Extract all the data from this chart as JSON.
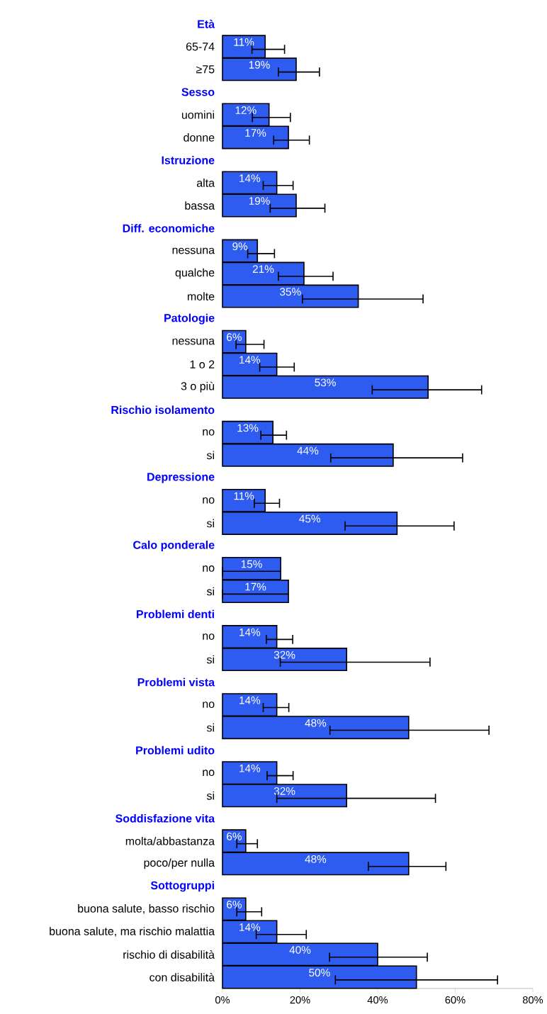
{
  "chart_data": {
    "type": "bar",
    "orientation": "horizontal",
    "color": "#2f5cf0",
    "categories": [
      "Età",
      "65-74",
      "≥75",
      "Sesso",
      "uomini",
      "donne",
      "Istruzione",
      "alta",
      "bassa",
      "Diff. economiche",
      "nessuna",
      "qualche",
      "molte",
      "Patologie",
      "nessuna",
      "1 o 2",
      "3 o più",
      "Rischio isolamento",
      "no",
      "si",
      "Depressione",
      "no",
      "si",
      "Calo ponderale",
      "no",
      "si",
      "Problemi denti",
      "no",
      "si",
      "Problemi vista",
      "no",
      "si",
      "Problemi udito",
      "no",
      "si",
      "Soddisfazione vita",
      "molta/abbastanza",
      "poco/per nulla",
      "Sottogruppi",
      "buona salute, basso rischio",
      "buona salute, ma rischio malattia",
      "rischio di disabilità",
      "con disabilità"
    ],
    "values": [
      null,
      11,
      19,
      null,
      12,
      17,
      null,
      14,
      19,
      null,
      9,
      21,
      35,
      null,
      6,
      14,
      53,
      null,
      13,
      44,
      null,
      11,
      45,
      null,
      15,
      17,
      null,
      14,
      32,
      null,
      14,
      48,
      null,
      14,
      32,
      null,
      6,
      48,
      null,
      6,
      14,
      40,
      50
    ],
    "errors": [
      null,
      [
        7.6,
        16.0
      ],
      [
        14.4,
        25.0
      ],
      null,
      [
        7.7,
        17.5
      ],
      [
        13.2,
        22.4
      ],
      null,
      [
        10.5,
        18.2
      ],
      [
        12.3,
        26.4
      ],
      null,
      [
        6.5,
        13.4
      ],
      [
        14.4,
        28.5
      ],
      [
        20.6,
        51.7
      ],
      null,
      [
        3.5,
        10.7
      ],
      [
        9.6,
        18.5
      ],
      [
        38.6,
        66.8
      ],
      null,
      [
        9.9,
        16.5
      ],
      [
        27.9,
        61.9
      ],
      null,
      [
        8.2,
        14.7
      ],
      [
        31.6,
        59.7
      ],
      null,
      [
        0,
        15
      ],
      [
        0,
        17
      ],
      null,
      [
        11.3,
        18.1
      ],
      [
        14.9,
        53.5
      ],
      null,
      [
        10.5,
        17.1
      ],
      [
        27.7,
        68.7
      ],
      null,
      [
        11.5,
        18.2
      ],
      [
        14.0,
        54.9
      ],
      null,
      [
        3.7,
        9.0
      ],
      [
        37.6,
        57.6
      ],
      null,
      [
        3.7,
        10.1
      ],
      [
        8.7,
        21.6
      ],
      [
        27.6,
        52.8
      ],
      [
        29.1,
        70.9
      ]
    ],
    "value_labels": [
      null,
      "11%",
      "19%",
      null,
      "12%",
      "17%",
      null,
      "14%",
      "19%",
      null,
      "9%",
      "21%",
      "35%",
      null,
      "6%",
      "14%",
      "53%",
      null,
      "13%",
      "44%",
      null,
      "11%",
      "45%",
      null,
      "15%",
      "17%",
      null,
      "14%",
      "32%",
      null,
      "14%",
      "48%",
      null,
      "14%",
      "32%",
      null,
      "6%",
      "48%",
      null,
      "6%",
      "14%",
      "40%",
      "50%"
    ],
    "xlim": [
      0,
      80
    ],
    "xticks": [
      {
        "value": 0,
        "label": "0%"
      },
      {
        "value": 20,
        "label": "20%"
      },
      {
        "value": 40,
        "label": "40%"
      },
      {
        "value": 60,
        "label": "60%"
      },
      {
        "value": 80,
        "label": "80%"
      }
    ]
  }
}
